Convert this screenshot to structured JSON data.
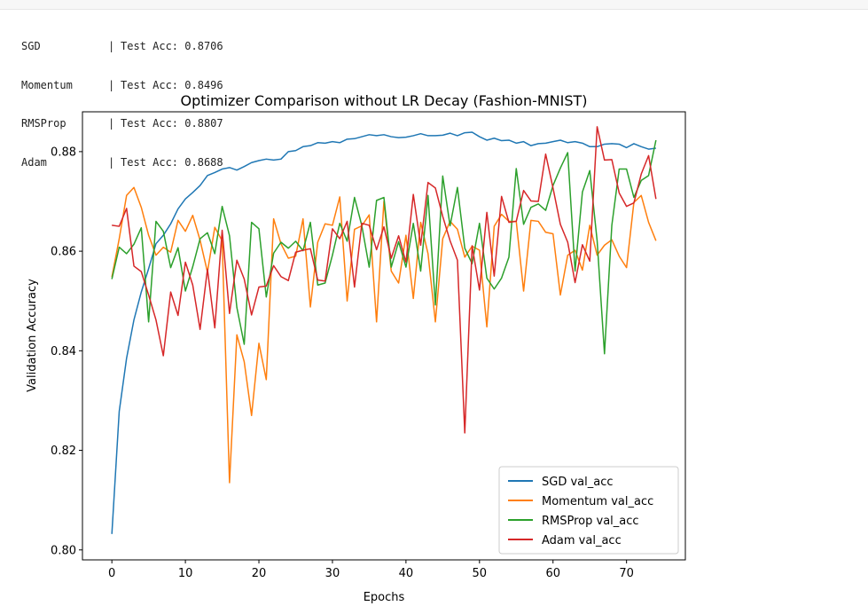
{
  "output": {
    "rows": [
      {
        "name": "SGD",
        "label": "Test Acc:",
        "value": "0.8706"
      },
      {
        "name": "Momentum",
        "label": "Test Acc:",
        "value": "0.8496"
      },
      {
        "name": "RMSProp",
        "label": "Test Acc:",
        "value": "0.8807"
      },
      {
        "name": "Adam",
        "label": "Test Acc:",
        "value": "0.8688"
      }
    ]
  },
  "chart_data": {
    "type": "line",
    "title": "Optimizer Comparison without LR Decay (Fashion-MNIST)",
    "xlabel": "Epochs",
    "ylabel": "Validation Accuracy",
    "xlim": [
      -4,
      78
    ],
    "ylim": [
      0.798,
      0.888
    ],
    "xticks": [
      0,
      10,
      20,
      30,
      40,
      50,
      60,
      70
    ],
    "yticks": [
      0.8,
      0.82,
      0.84,
      0.86,
      0.88
    ],
    "ytick_labels": [
      "0.80",
      "0.82",
      "0.84",
      "0.86",
      "0.88"
    ],
    "grid": false,
    "legend_position": "lower-right",
    "series": [
      {
        "name": "SGD val_acc",
        "color": "#1f77b4",
        "values": [
          0.8032,
          0.8278,
          0.8385,
          0.8462,
          0.8518,
          0.8565,
          0.8615,
          0.8632,
          0.8655,
          0.8685,
          0.8705,
          0.8718,
          0.8732,
          0.8752,
          0.8758,
          0.8765,
          0.8768,
          0.8763,
          0.877,
          0.8778,
          0.8782,
          0.8785,
          0.8783,
          0.8785,
          0.88,
          0.8802,
          0.881,
          0.8812,
          0.8818,
          0.8817,
          0.882,
          0.8818,
          0.8825,
          0.8826,
          0.883,
          0.8834,
          0.8832,
          0.8834,
          0.883,
          0.8828,
          0.8829,
          0.8832,
          0.8836,
          0.8832,
          0.8832,
          0.8833,
          0.8837,
          0.8832,
          0.8838,
          0.8839,
          0.883,
          0.8823,
          0.8827,
          0.8822,
          0.8823,
          0.8817,
          0.882,
          0.8812,
          0.8816,
          0.8817,
          0.882,
          0.8823,
          0.8818,
          0.882,
          0.8817,
          0.881,
          0.881,
          0.8815,
          0.8816,
          0.8815,
          0.8808,
          0.8816,
          0.881,
          0.8805,
          0.8807
        ]
      },
      {
        "name": "Momentum val_acc",
        "color": "#ff7f0e",
        "values": [
          0.8548,
          0.8625,
          0.8712,
          0.8728,
          0.8688,
          0.8632,
          0.8592,
          0.8608,
          0.8598,
          0.8662,
          0.864,
          0.8672,
          0.8622,
          0.8558,
          0.8648,
          0.8621,
          0.8135,
          0.8432,
          0.8378,
          0.827,
          0.8415,
          0.8342,
          0.8665,
          0.8615,
          0.8586,
          0.859,
          0.8665,
          0.8488,
          0.8618,
          0.8655,
          0.8652,
          0.8709,
          0.85,
          0.8644,
          0.8651,
          0.8673,
          0.8458,
          0.87,
          0.856,
          0.8536,
          0.8632,
          0.8505,
          0.8658,
          0.8595,
          0.8458,
          0.8625,
          0.866,
          0.8644,
          0.8588,
          0.861,
          0.8602,
          0.8448,
          0.865,
          0.8674,
          0.866,
          0.866,
          0.852,
          0.8662,
          0.866,
          0.8638,
          0.8635,
          0.8512,
          0.8592,
          0.8602,
          0.8562,
          0.8652,
          0.8592,
          0.8612,
          0.8623,
          0.859,
          0.8567,
          0.8698,
          0.8712,
          0.8658,
          0.8621
        ]
      },
      {
        "name": "RMSProp val_acc",
        "color": "#2ca02c",
        "values": [
          0.8544,
          0.8608,
          0.8595,
          0.8614,
          0.8647,
          0.8458,
          0.866,
          0.864,
          0.8567,
          0.8607,
          0.852,
          0.8569,
          0.8625,
          0.8637,
          0.8595,
          0.869,
          0.8631,
          0.8487,
          0.8413,
          0.8658,
          0.8645,
          0.8508,
          0.8596,
          0.8618,
          0.8606,
          0.862,
          0.8601,
          0.8658,
          0.8532,
          0.8536,
          0.8592,
          0.8656,
          0.862,
          0.8708,
          0.8651,
          0.8568,
          0.8702,
          0.8708,
          0.8568,
          0.8619,
          0.8568,
          0.8656,
          0.856,
          0.8712,
          0.8492,
          0.8751,
          0.8651,
          0.8728,
          0.8606,
          0.8575,
          0.8656,
          0.8546,
          0.8524,
          0.8546,
          0.8588,
          0.8766,
          0.8654,
          0.8688,
          0.8695,
          0.8682,
          0.8732,
          0.8767,
          0.8798,
          0.856,
          0.8719,
          0.8762,
          0.8621,
          0.8394,
          0.8652,
          0.8765,
          0.8765,
          0.8708,
          0.8742,
          0.8752,
          0.8823
        ]
      },
      {
        "name": "Adam val_acc",
        "color": "#d62728",
        "values": [
          0.8652,
          0.865,
          0.8686,
          0.857,
          0.8559,
          0.8512,
          0.8462,
          0.839,
          0.8518,
          0.8471,
          0.8578,
          0.8532,
          0.8443,
          0.8564,
          0.8446,
          0.8642,
          0.8475,
          0.8582,
          0.8544,
          0.8472,
          0.8528,
          0.853,
          0.8571,
          0.8549,
          0.8541,
          0.8598,
          0.8602,
          0.8605,
          0.8542,
          0.854,
          0.8645,
          0.8625,
          0.866,
          0.8528,
          0.8656,
          0.8652,
          0.8603,
          0.8649,
          0.8586,
          0.8631,
          0.8578,
          0.8714,
          0.8612,
          0.8738,
          0.8727,
          0.867,
          0.8621,
          0.8582,
          0.8235,
          0.8611,
          0.8522,
          0.8678,
          0.855,
          0.871,
          0.8658,
          0.866,
          0.8722,
          0.8701,
          0.87,
          0.8795,
          0.8727,
          0.8654,
          0.8618,
          0.8537,
          0.8613,
          0.858,
          0.885,
          0.8783,
          0.8784,
          0.8717,
          0.869,
          0.8697,
          0.8755,
          0.8792,
          0.8705
        ]
      }
    ]
  }
}
